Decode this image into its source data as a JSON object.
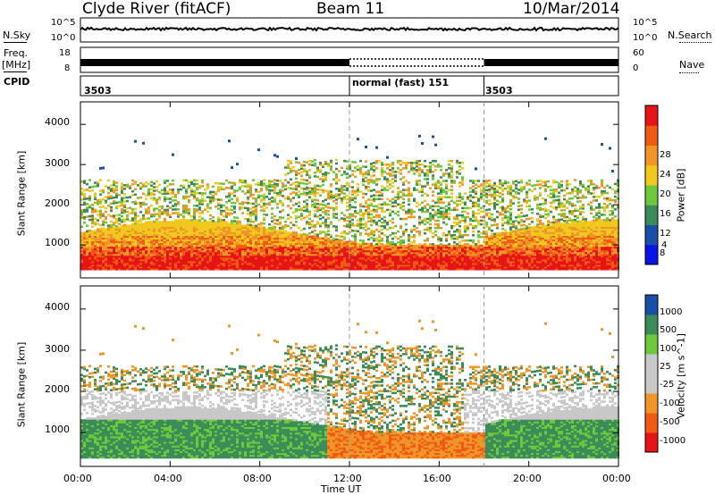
{
  "header": {
    "station": "Clyde River (fitACF)",
    "beam": "Beam 11",
    "date": "10/Mar/2014"
  },
  "left_labels": {
    "nsky": "N.Sky",
    "freq": "Freq.",
    "freq_unit": "[MHz]",
    "cpid": "CPID"
  },
  "right_labels": {
    "nsearch": "N.Search",
    "nave": "Nave"
  },
  "noise_axis": {
    "left_ticks": [
      "10^5",
      "10^0"
    ],
    "right_ticks": [
      "10^5",
      "10^0"
    ]
  },
  "freq_axis": {
    "left_ticks": [
      "18",
      "8"
    ],
    "right_ticks": [
      "60",
      "0"
    ]
  },
  "cpid_segments": [
    {
      "label": "3503",
      "start_hour": 0
    },
    {
      "label": "normal (fast) 151",
      "start_hour": 12
    },
    {
      "label": "3503",
      "start_hour": 18
    }
  ],
  "colors": {
    "power": [
      "#0a14e6",
      "#1a4fa8",
      "#3c8c5a",
      "#6ec83c",
      "#f0c81e",
      "#f09628",
      "#f05a14",
      "#e61414"
    ],
    "velocity": [
      "#e61414",
      "#f05a14",
      "#f09628",
      "#c8c8c8",
      "#c8c8c8",
      "#6ec83c",
      "#3c8c5a",
      "#1a4fa8"
    ]
  },
  "chart_data": [
    {
      "type": "heatmap",
      "title": "",
      "xlabel": "Time UT",
      "ylabel": "Slant Range [km]",
      "x_ticks": [
        "00:00",
        "04:00",
        "08:00",
        "12:00",
        "16:00",
        "20:00",
        "00:00"
      ],
      "xlim_hours": [
        0,
        24
      ],
      "y_ticks": [
        1000,
        2000,
        3000,
        4000
      ],
      "ylim": [
        180,
        4560
      ],
      "colorbar": {
        "label": "Power [dB]",
        "ticks": [
          "4",
          "8",
          "12",
          "16",
          "20",
          "24",
          "28"
        ],
        "range": [
          0,
          30
        ]
      }
    },
    {
      "type": "heatmap",
      "title": "",
      "xlabel": "Time UT",
      "ylabel": "Slant Range [km]",
      "x_ticks": [
        "00:00",
        "04:00",
        "08:00",
        "12:00",
        "16:00",
        "20:00",
        "00:00"
      ],
      "xlim_hours": [
        0,
        24
      ],
      "y_ticks": [
        1000,
        2000,
        3000,
        4000
      ],
      "ylim": [
        180,
        4560
      ],
      "colorbar": {
        "label": "Velocity [m s^-1]",
        "ticks": [
          "1000",
          "500",
          "100",
          "25",
          "-25",
          "-100",
          "-500",
          "-1000"
        ]
      }
    }
  ]
}
